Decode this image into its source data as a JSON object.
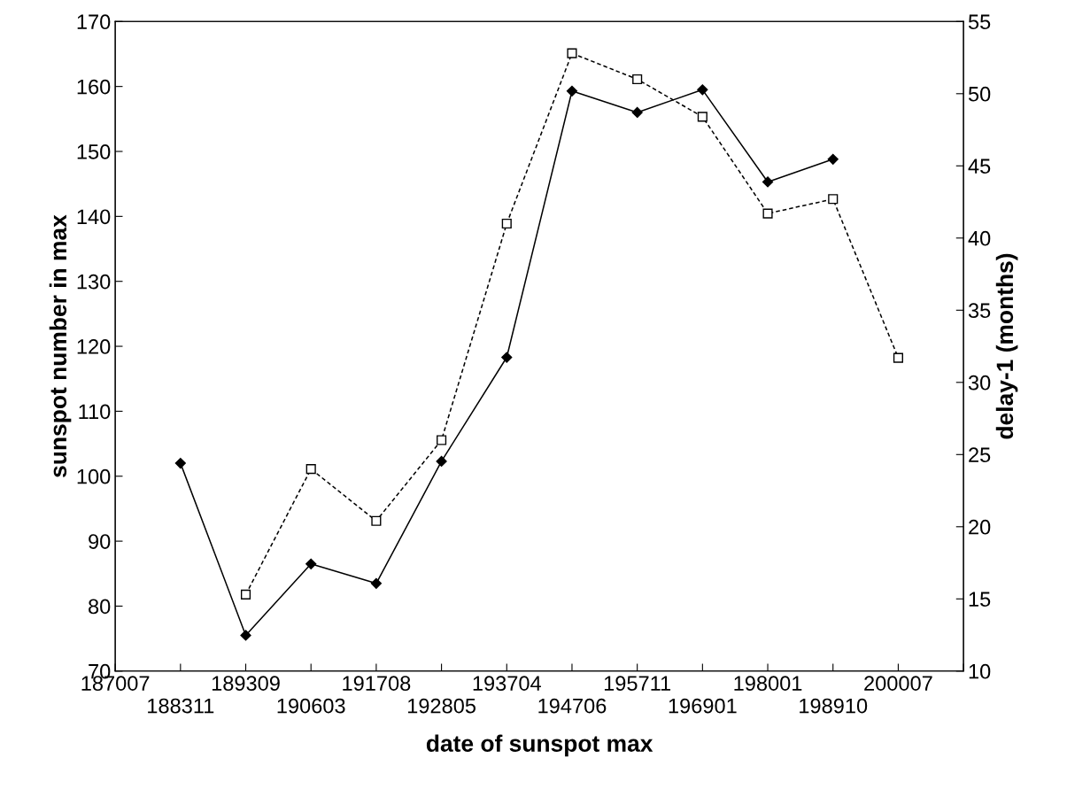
{
  "chart_data": {
    "type": "line",
    "xlabel": "date of sunspot max",
    "ylabel": "sunspot number in max",
    "y2label": "delay-1 (months)",
    "categories": [
      "187007",
      "188311",
      "189309",
      "190603",
      "191708",
      "192805",
      "193704",
      "194706",
      "195711",
      "196901",
      "198001",
      "198910",
      "200007",
      null
    ],
    "series": [
      {
        "color": "#000000",
        "marker": "diamond",
        "line_style": "solid",
        "values": [
          null,
          102,
          75.5,
          86.5,
          83.5,
          102.3,
          118.3,
          159.3,
          156,
          159.5,
          145.3,
          148.8,
          null,
          null
        ]
      },
      {
        "color": "#000000",
        "marker": "square",
        "line_style": "dashed",
        "axis": "y2",
        "values": [
          null,
          null,
          15.3,
          24.0,
          20.4,
          26.0,
          41.0,
          52.8,
          51.0,
          48.4,
          41.7,
          42.7,
          31.7,
          null
        ]
      }
    ],
    "ylim": [
      70,
      170
    ],
    "yticks": [
      70,
      80,
      90,
      100,
      110,
      120,
      130,
      140,
      150,
      160,
      170
    ],
    "y2lim": [
      10,
      55
    ],
    "y2ticks": [
      10,
      15,
      20,
      25,
      30,
      35,
      40,
      45,
      50,
      55
    ],
    "grid": false,
    "legend": false
  }
}
